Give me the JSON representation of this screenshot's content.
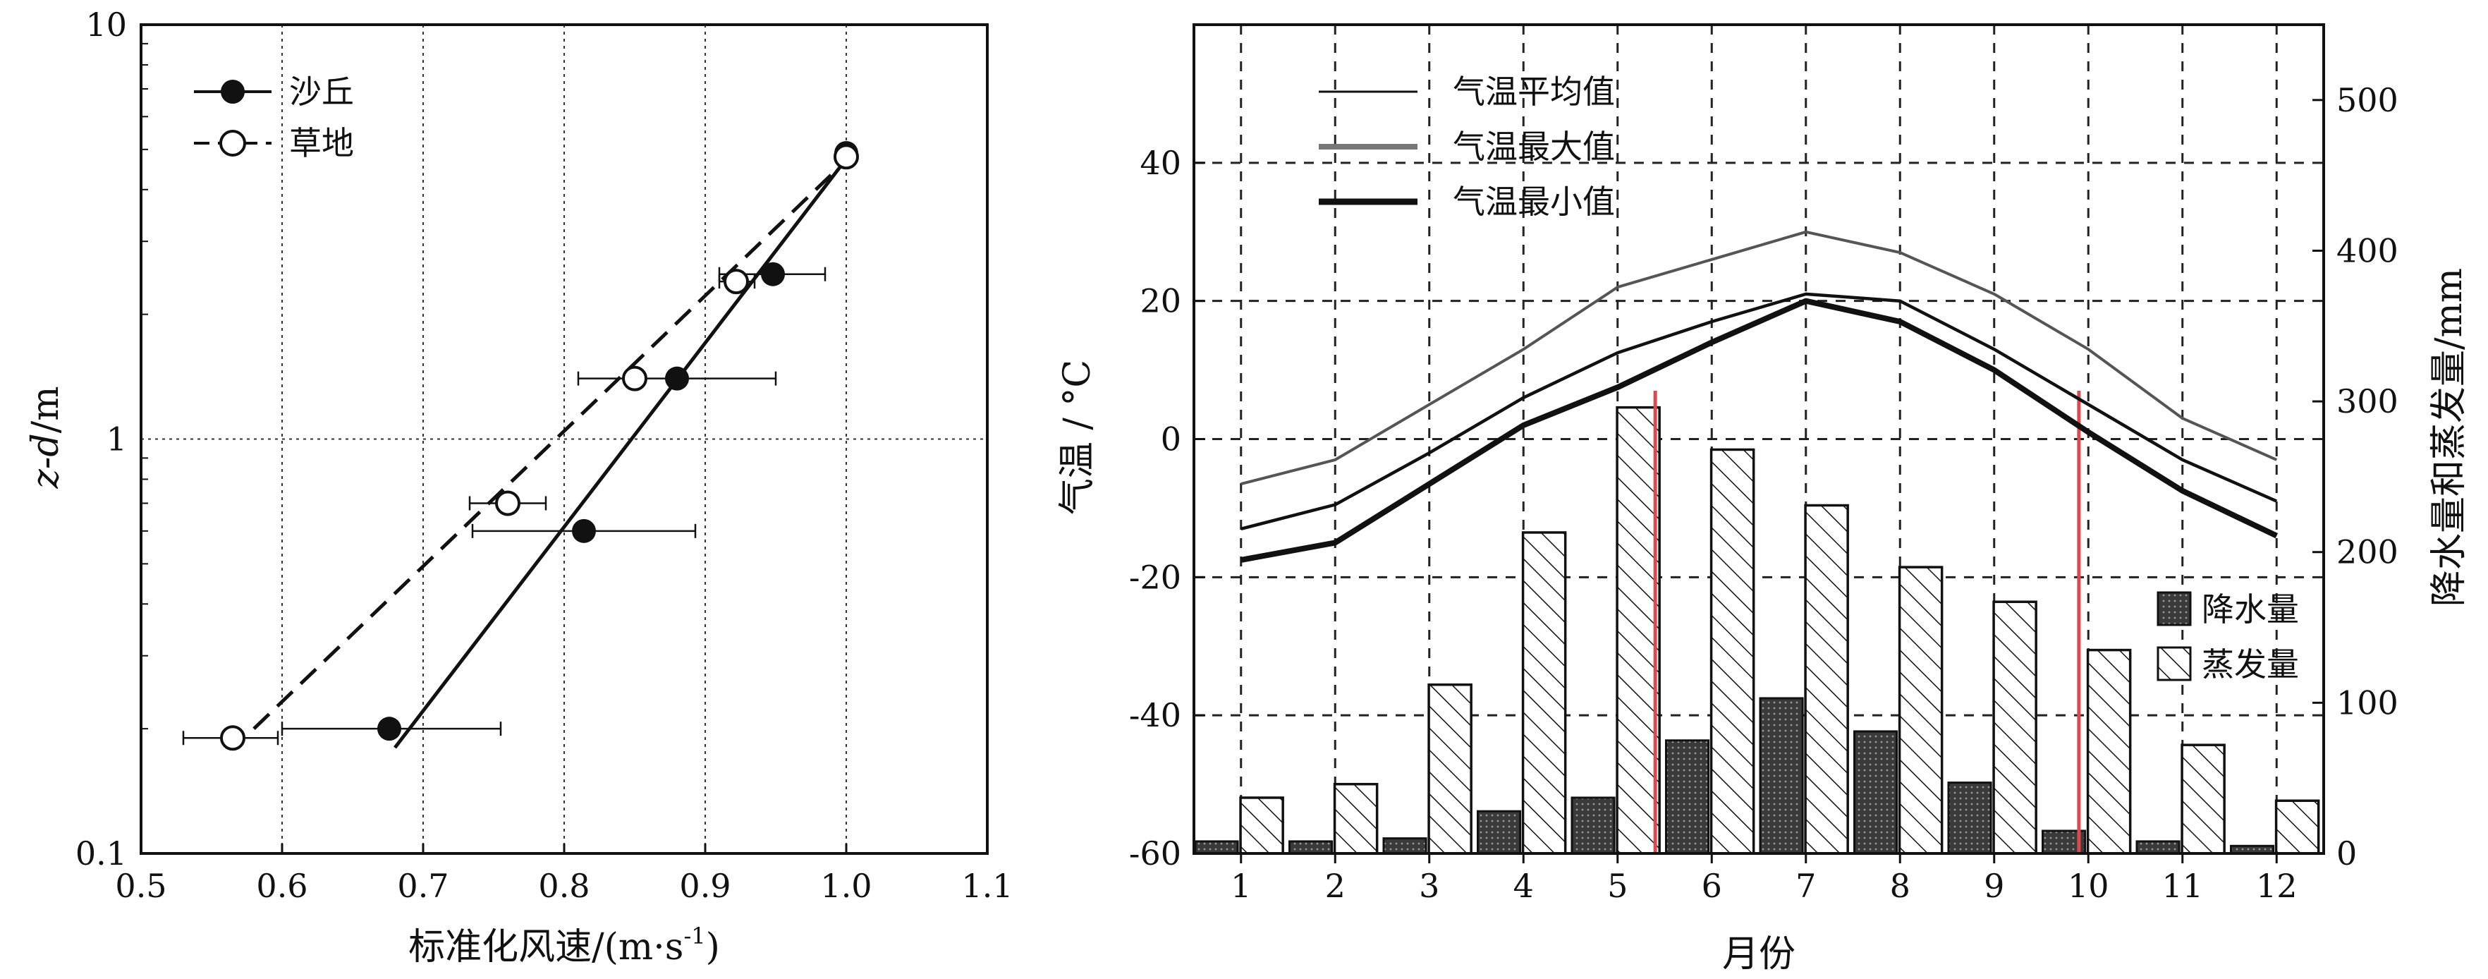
{
  "chart_data": [
    {
      "type": "scatter",
      "title": "",
      "xlabel": "标准化风速/(m·s",
      "xlabel_sup": "-1",
      "xlabel_tail": ")",
      "ylabel_italic": "z-d",
      "ylabel_tail": "/m",
      "xlim": [
        0.5,
        1.1
      ],
      "ylim": [
        0.1,
        10
      ],
      "yscale": "log",
      "grid": true,
      "legend_position": "top-left",
      "x_ticks": [
        "0.5",
        "0.6",
        "0.7",
        "0.8",
        "0.9",
        "1.0",
        "1.1"
      ],
      "y_ticks": [
        "0.1",
        "1",
        "10"
      ],
      "series": [
        {
          "name": "沙丘",
          "marker": "filled-circle",
          "line": "solid",
          "points": [
            {
              "x": 0.676,
              "y": 0.2,
              "xerr": [
                0.6,
                0.755
              ]
            },
            {
              "x": 0.814,
              "y": 0.6,
              "xerr": [
                0.735,
                0.893
              ]
            },
            {
              "x": 0.88,
              "y": 1.4,
              "xerr": [
                0.81,
                0.95
              ]
            },
            {
              "x": 0.948,
              "y": 2.5,
              "xerr": [
                0.91,
                0.985
              ]
            },
            {
              "x": 1.0,
              "y": 4.9,
              "xerr": null
            }
          ],
          "fit": [
            {
              "x": 0.68,
              "y": 0.18
            },
            {
              "x": 0.997,
              "y": 4.6
            }
          ]
        },
        {
          "name": "草地",
          "marker": "open-circle",
          "line": "dashed",
          "points": [
            {
              "x": 0.565,
              "y": 0.19,
              "xerr": [
                0.53,
                0.597
              ]
            },
            {
              "x": 0.76,
              "y": 0.7,
              "xerr": [
                0.733,
                0.787
              ]
            },
            {
              "x": 0.85,
              "y": 1.4,
              "xerr": null
            },
            {
              "x": 0.922,
              "y": 2.4,
              "xerr": [
                0.91,
                0.935
              ]
            },
            {
              "x": 1.0,
              "y": 4.8,
              "xerr": null
            }
          ],
          "fit": [
            {
              "x": 0.58,
              "y": 0.2
            },
            {
              "x": 0.997,
              "y": 4.6
            }
          ]
        }
      ]
    },
    {
      "type": "bar-line",
      "title": "",
      "xlabel": "月份",
      "ylabel_left": "气温 / °C",
      "ylabel_right": "降水量和蒸发量/mm",
      "categories": [
        "1",
        "2",
        "3",
        "4",
        "5",
        "6",
        "7",
        "8",
        "9",
        "10",
        "11",
        "12"
      ],
      "y_left_lim": [
        -60,
        60
      ],
      "y_left_ticks": [
        "-60",
        "-40",
        "-20",
        "0",
        "20",
        "40"
      ],
      "y_right_lim": [
        0,
        550
      ],
      "y_right_ticks": [
        "0",
        "100",
        "200",
        "300",
        "400",
        "500"
      ],
      "grid": true,
      "line_legend_position": "top-left",
      "bar_legend_position": "right",
      "lines": [
        {
          "name": "气温平均值",
          "values": [
            -13,
            -9.5,
            -2,
            6,
            12.5,
            17,
            21,
            20,
            13,
            5,
            -3,
            -9
          ]
        },
        {
          "name": "气温最大值",
          "values": [
            -6.5,
            -3,
            5,
            13,
            22,
            26,
            30,
            27,
            21,
            13,
            3,
            -3
          ]
        },
        {
          "name": "气温最小值",
          "values": [
            -17.5,
            -15,
            -6.5,
            2,
            7.5,
            14,
            20,
            17,
            10,
            1,
            -7.5,
            -14
          ]
        }
      ],
      "bar_series": [
        {
          "name": "降水量",
          "values": [
            8,
            8,
            10,
            28,
            37,
            75,
            103,
            81,
            47,
            15,
            8,
            5
          ]
        },
        {
          "name": "蒸发量",
          "values": [
            37,
            46,
            112,
            213,
            296,
            268,
            231,
            190,
            167,
            135,
            72,
            35
          ]
        }
      ],
      "red_markers": [
        5.4,
        9.9
      ],
      "colors": {
        "red_marker": "#e0484f",
        "precip_fill": "#3a3a3a"
      }
    }
  ]
}
